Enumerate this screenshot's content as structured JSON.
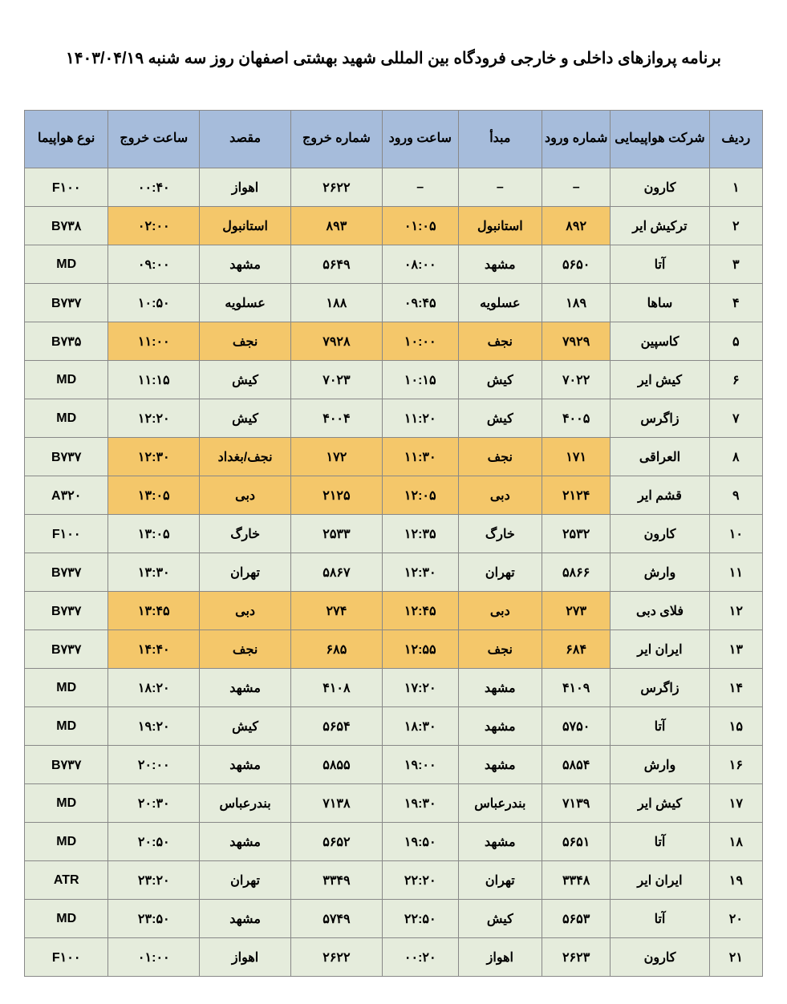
{
  "title": "برنامه پروازهای داخلی و خارجی فرودگاه بین المللی شهید بهشتی اصفهان روز  سه شنبه ۱۴۰۳/۰۴/۱۹",
  "header_bg": "#a6bcdb",
  "cell_bg_default": "#e5ecdc",
  "cell_bg_highlight": "#f4c76a",
  "border_color": "#888888",
  "columns": [
    "ردیف",
    "شرکت هواپیمایی",
    "شماره ورود",
    "مبدأ",
    "ساعت ورود",
    "شماره خروج",
    "مقصد",
    "ساعت خروج",
    "نوع هواپیما"
  ],
  "rows": [
    {
      "r": "۱",
      "airline": "کارون",
      "arr_num": "–",
      "origin": "–",
      "arr_time": "–",
      "dep_num": "۲۶۲۲",
      "dest": "اهواز",
      "dep_time": "۰۰:۴۰",
      "aircraft": "F۱۰۰",
      "hl": []
    },
    {
      "r": "۲",
      "airline": "ترکیش ایر",
      "arr_num": "۸۹۲",
      "origin": "استانبول",
      "arr_time": "۰۱:۰۵",
      "dep_num": "۸۹۳",
      "dest": "استانبول",
      "dep_time": "۰۲:۰۰",
      "aircraft": "B۷۳۸",
      "hl": [
        "arr_num",
        "origin",
        "arr_time",
        "dep_num",
        "dest",
        "dep_time"
      ]
    },
    {
      "r": "۳",
      "airline": "آتا",
      "arr_num": "۵۶۵۰",
      "origin": "مشهد",
      "arr_time": "۰۸:۰۰",
      "dep_num": "۵۶۴۹",
      "dest": "مشهد",
      "dep_time": "۰۹:۰۰",
      "aircraft": "MD",
      "hl": []
    },
    {
      "r": "۴",
      "airline": "ساها",
      "arr_num": "۱۸۹",
      "origin": "عسلویه",
      "arr_time": "۰۹:۴۵",
      "dep_num": "۱۸۸",
      "dest": "عسلویه",
      "dep_time": "۱۰:۵۰",
      "aircraft": "B۷۳۷",
      "hl": []
    },
    {
      "r": "۵",
      "airline": "کاسپین",
      "arr_num": "۷۹۲۹",
      "origin": "نجف",
      "arr_time": "۱۰:۰۰",
      "dep_num": "۷۹۲۸",
      "dest": "نجف",
      "dep_time": "۱۱:۰۰",
      "aircraft": "B۷۳۵",
      "hl": [
        "arr_num",
        "origin",
        "arr_time",
        "dep_num",
        "dest",
        "dep_time"
      ]
    },
    {
      "r": "۶",
      "airline": "کیش ایر",
      "arr_num": "۷۰۲۲",
      "origin": "کیش",
      "arr_time": "۱۰:۱۵",
      "dep_num": "۷۰۲۳",
      "dest": "کیش",
      "dep_time": "۱۱:۱۵",
      "aircraft": "MD",
      "hl": []
    },
    {
      "r": "۷",
      "airline": "زاگرس",
      "arr_num": "۴۰۰۵",
      "origin": "کیش",
      "arr_time": "۱۱:۲۰",
      "dep_num": "۴۰۰۴",
      "dest": "کیش",
      "dep_time": "۱۲:۲۰",
      "aircraft": "MD",
      "hl": []
    },
    {
      "r": "۸",
      "airline": "العراقی",
      "arr_num": "۱۷۱",
      "origin": "نجف",
      "arr_time": "۱۱:۳۰",
      "dep_num": "۱۷۲",
      "dest": "نجف/بغداد",
      "dep_time": "۱۲:۳۰",
      "aircraft": "B۷۳۷",
      "hl": [
        "arr_num",
        "origin",
        "arr_time",
        "dep_num",
        "dest",
        "dep_time"
      ]
    },
    {
      "r": "۹",
      "airline": "قشم ایر",
      "arr_num": "۲۱۲۴",
      "origin": "دبی",
      "arr_time": "۱۲:۰۵",
      "dep_num": "۲۱۲۵",
      "dest": "دبی",
      "dep_time": "۱۳:۰۵",
      "aircraft": "A۳۲۰",
      "hl": [
        "arr_num",
        "origin",
        "arr_time",
        "dep_num",
        "dest",
        "dep_time"
      ]
    },
    {
      "r": "۱۰",
      "airline": "کارون",
      "arr_num": "۲۵۳۲",
      "origin": "خارگ",
      "arr_time": "۱۲:۳۵",
      "dep_num": "۲۵۳۳",
      "dest": "خارگ",
      "dep_time": "۱۳:۰۵",
      "aircraft": "F۱۰۰",
      "hl": []
    },
    {
      "r": "۱۱",
      "airline": "وارش",
      "arr_num": "۵۸۶۶",
      "origin": "تهران",
      "arr_time": "۱۲:۳۰",
      "dep_num": "۵۸۶۷",
      "dest": "تهران",
      "dep_time": "۱۳:۳۰",
      "aircraft": "B۷۳۷",
      "hl": []
    },
    {
      "r": "۱۲",
      "airline": "فلای دبی",
      "arr_num": "۲۷۳",
      "origin": "دبی",
      "arr_time": "۱۲:۴۵",
      "dep_num": "۲۷۴",
      "dest": "دبی",
      "dep_time": "۱۳:۴۵",
      "aircraft": "B۷۳۷",
      "hl": [
        "arr_num",
        "origin",
        "arr_time",
        "dep_num",
        "dest",
        "dep_time"
      ]
    },
    {
      "r": "۱۳",
      "airline": "ایران ایر",
      "arr_num": "۶۸۴",
      "origin": "نجف",
      "arr_time": "۱۲:۵۵",
      "dep_num": "۶۸۵",
      "dest": "نجف",
      "dep_time": "۱۴:۴۰",
      "aircraft": "B۷۳۷",
      "hl": [
        "arr_num",
        "origin",
        "arr_time",
        "dep_num",
        "dest",
        "dep_time"
      ]
    },
    {
      "r": "۱۴",
      "airline": "زاگرس",
      "arr_num": "۴۱۰۹",
      "origin": "مشهد",
      "arr_time": "۱۷:۲۰",
      "dep_num": "۴۱۰۸",
      "dest": "مشهد",
      "dep_time": "۱۸:۲۰",
      "aircraft": "MD",
      "hl": []
    },
    {
      "r": "۱۵",
      "airline": "آتا",
      "arr_num": "۵۷۵۰",
      "origin": "مشهد",
      "arr_time": "۱۸:۳۰",
      "dep_num": "۵۶۵۴",
      "dest": "کیش",
      "dep_time": "۱۹:۲۰",
      "aircraft": "MD",
      "hl": []
    },
    {
      "r": "۱۶",
      "airline": "وارش",
      "arr_num": "۵۸۵۴",
      "origin": "مشهد",
      "arr_time": "۱۹:۰۰",
      "dep_num": "۵۸۵۵",
      "dest": "مشهد",
      "dep_time": "۲۰:۰۰",
      "aircraft": "B۷۳۷",
      "hl": []
    },
    {
      "r": "۱۷",
      "airline": "کیش ایر",
      "arr_num": "۷۱۳۹",
      "origin": "بندرعباس",
      "arr_time": "۱۹:۳۰",
      "dep_num": "۷۱۳۸",
      "dest": "بندرعباس",
      "dep_time": "۲۰:۳۰",
      "aircraft": "MD",
      "hl": []
    },
    {
      "r": "۱۸",
      "airline": "آتا",
      "arr_num": "۵۶۵۱",
      "origin": "مشهد",
      "arr_time": "۱۹:۵۰",
      "dep_num": "۵۶۵۲",
      "dest": "مشهد",
      "dep_time": "۲۰:۵۰",
      "aircraft": "MD",
      "hl": []
    },
    {
      "r": "۱۹",
      "airline": "ایران ایر",
      "arr_num": "۳۳۴۸",
      "origin": "تهران",
      "arr_time": "۲۲:۲۰",
      "dep_num": "۳۳۴۹",
      "dest": "تهران",
      "dep_time": "۲۳:۲۰",
      "aircraft": "ATR",
      "hl": []
    },
    {
      "r": "۲۰",
      "airline": "آتا",
      "arr_num": "۵۶۵۳",
      "origin": "کیش",
      "arr_time": "۲۲:۵۰",
      "dep_num": "۵۷۴۹",
      "dest": "مشهد",
      "dep_time": "۲۳:۵۰",
      "aircraft": "MD",
      "hl": []
    },
    {
      "r": "۲۱",
      "airline": "کارون",
      "arr_num": "۲۶۲۳",
      "origin": "اهواز",
      "arr_time": "۰۰:۲۰",
      "dep_num": "۲۶۲۲",
      "dest": "اهواز",
      "dep_time": "۰۱:۰۰",
      "aircraft": "F۱۰۰",
      "hl": []
    }
  ]
}
